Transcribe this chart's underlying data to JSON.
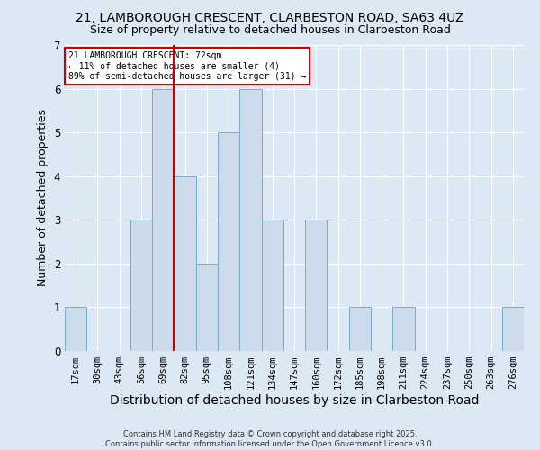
{
  "title1": "21, LAMBOROUGH CRESCENT, CLARBESTON ROAD, SA63 4UZ",
  "title2": "Size of property relative to detached houses in Clarbeston Road",
  "xlabel": "Distribution of detached houses by size in Clarbeston Road",
  "ylabel": "Number of detached properties",
  "footnote": "Contains HM Land Registry data © Crown copyright and database right 2025.\nContains public sector information licensed under the Open Government Licence v3.0.",
  "bin_labels": [
    "17sqm",
    "30sqm",
    "43sqm",
    "56sqm",
    "69sqm",
    "82sqm",
    "95sqm",
    "108sqm",
    "121sqm",
    "134sqm",
    "147sqm",
    "160sqm",
    "172sqm",
    "185sqm",
    "198sqm",
    "211sqm",
    "224sqm",
    "237sqm",
    "250sqm",
    "263sqm",
    "276sqm"
  ],
  "values": [
    1,
    0,
    0,
    3,
    6,
    4,
    2,
    5,
    6,
    3,
    0,
    3,
    0,
    1,
    0,
    1,
    0,
    0,
    0,
    0,
    1
  ],
  "bar_color": "#ccdcec",
  "bar_edge_color": "#7aabcb",
  "red_line_x": 4.5,
  "annotation_text": "21 LAMBOROUGH CRESCENT: 72sqm\n← 11% of detached houses are smaller (4)\n89% of semi-detached houses are larger (31) →",
  "annotation_box_color": "#ffffff",
  "annotation_box_edge": "#cc0000",
  "red_line_color": "#cc0000",
  "ylim": [
    0,
    7
  ],
  "yticks": [
    0,
    1,
    2,
    3,
    4,
    5,
    6,
    7
  ],
  "background_color": "#dce8f4",
  "plot_bg_color": "#dce8f4",
  "grid_color": "#ffffff",
  "title_fontsize": 10,
  "subtitle_fontsize": 9,
  "axis_label_fontsize": 9,
  "tick_fontsize": 7.5,
  "annot_fontsize": 7,
  "footnote_fontsize": 6
}
